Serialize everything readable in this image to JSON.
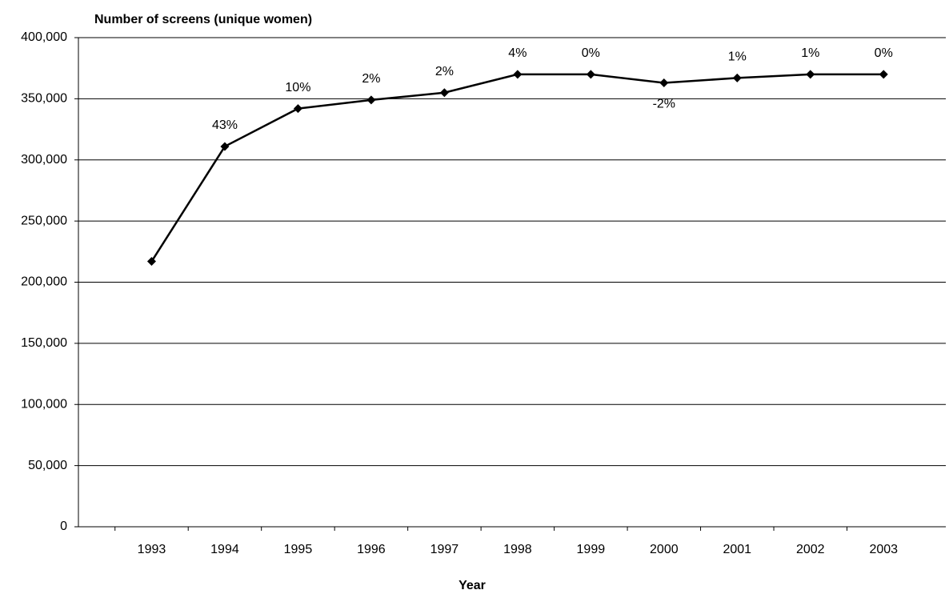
{
  "chart_data": {
    "type": "line",
    "title": "Number of screens (unique women)",
    "x_label": "Year",
    "categories": [
      "1993",
      "1994",
      "1995",
      "1996",
      "1997",
      "1998",
      "1999",
      "2000",
      "2001",
      "2002",
      "2003"
    ],
    "series": [
      {
        "name": "Number of screens",
        "color": "#000000",
        "values": [
          217000,
          311000,
          342000,
          349000,
          355000,
          370000,
          370000,
          363000,
          367000,
          370000,
          370000
        ]
      }
    ],
    "change_labels": [
      null,
      "43%",
      "10%",
      "2%",
      "2%",
      "4%",
      "0%",
      "-2%",
      "1%",
      "1%",
      "0%"
    ],
    "ylim": [
      0,
      400000
    ],
    "yticks": [
      0,
      {
        "value": 50000,
        "label": "50,000"
      },
      {
        "value": 100000,
        "label": "100,000"
      },
      {
        "value": 150000,
        "label": "150,000"
      },
      {
        "value": 200000,
        "label": "200,000"
      },
      {
        "value": 250000,
        "label": "250,000"
      },
      {
        "value": 300000,
        "label": "300,000"
      },
      {
        "value": 350000,
        "label": "350,000"
      },
      {
        "value": 400000,
        "label": "400,000"
      }
    ],
    "grid": true
  }
}
